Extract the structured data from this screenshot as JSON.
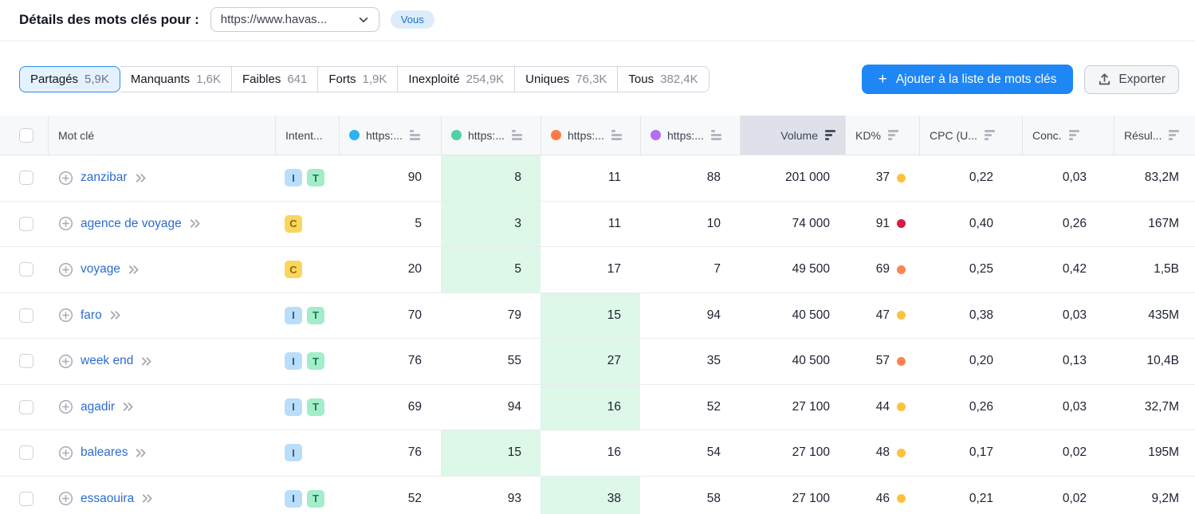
{
  "header": {
    "title": "Détails des mots clés pour :",
    "domain_selected": "https://www.havas...",
    "you_badge": "Vous"
  },
  "tabs": [
    {
      "label": "Partagés",
      "count": "5,9K",
      "selected": true
    },
    {
      "label": "Manquants",
      "count": "1,6K",
      "selected": false
    },
    {
      "label": "Faibles",
      "count": "641",
      "selected": false
    },
    {
      "label": "Forts",
      "count": "1,9K",
      "selected": false
    },
    {
      "label": "Inexploité",
      "count": "254,9K",
      "selected": false
    },
    {
      "label": "Uniques",
      "count": "76,3K",
      "selected": false
    },
    {
      "label": "Tous",
      "count": "382,4K",
      "selected": false
    }
  ],
  "actions": {
    "add_to_list": "Ajouter à la liste de mots clés",
    "export": "Exporter"
  },
  "table": {
    "columns": {
      "keyword": "Mot clé",
      "intent": "Intent...",
      "site1": "https:...",
      "site2": "https:...",
      "site3": "https:...",
      "site4": "https:...",
      "volume": "Volume",
      "kd": "KD%",
      "cpc": "CPC (U...",
      "competition": "Conc.",
      "results": "Résul..."
    },
    "site_colors": [
      "#2bb3f3",
      "#50d0a4",
      "#ff7a45",
      "#b46ef0"
    ],
    "sorted_column": "volume",
    "rows": [
      {
        "keyword": "zanzibar",
        "intents": [
          "I",
          "T"
        ],
        "positions": [
          "90",
          "8",
          "11",
          "88"
        ],
        "best_index": 1,
        "volume": "201 000",
        "kd": "37",
        "kd_level": "yellow",
        "cpc": "0,22",
        "competition": "0,03",
        "results": "83,2M"
      },
      {
        "keyword": "agence de voyage",
        "intents": [
          "C"
        ],
        "positions": [
          "5",
          "3",
          "11",
          "10"
        ],
        "best_index": 1,
        "volume": "74 000",
        "kd": "91",
        "kd_level": "red",
        "cpc": "0,40",
        "competition": "0,26",
        "results": "167M"
      },
      {
        "keyword": "voyage",
        "intents": [
          "C"
        ],
        "positions": [
          "20",
          "5",
          "17",
          "7"
        ],
        "best_index": 1,
        "volume": "49 500",
        "kd": "69",
        "kd_level": "orange",
        "cpc": "0,25",
        "competition": "0,42",
        "results": "1,5B"
      },
      {
        "keyword": "faro",
        "intents": [
          "I",
          "T"
        ],
        "positions": [
          "70",
          "79",
          "15",
          "94"
        ],
        "best_index": 2,
        "volume": "40 500",
        "kd": "47",
        "kd_level": "yellow",
        "cpc": "0,38",
        "competition": "0,03",
        "results": "435M"
      },
      {
        "keyword": "week end",
        "intents": [
          "I",
          "T"
        ],
        "positions": [
          "76",
          "55",
          "27",
          "35"
        ],
        "best_index": 2,
        "volume": "40 500",
        "kd": "57",
        "kd_level": "orange",
        "cpc": "0,20",
        "competition": "0,13",
        "results": "10,4B"
      },
      {
        "keyword": "agadir",
        "intents": [
          "I",
          "T"
        ],
        "positions": [
          "69",
          "94",
          "16",
          "52"
        ],
        "best_index": 2,
        "volume": "27 100",
        "kd": "44",
        "kd_level": "yellow",
        "cpc": "0,26",
        "competition": "0,03",
        "results": "32,7M"
      },
      {
        "keyword": "baleares",
        "intents": [
          "I"
        ],
        "positions": [
          "76",
          "15",
          "16",
          "54"
        ],
        "best_index": 1,
        "volume": "27 100",
        "kd": "48",
        "kd_level": "yellow",
        "cpc": "0,17",
        "competition": "0,02",
        "results": "195M"
      },
      {
        "keyword": "essaouira",
        "intents": [
          "I",
          "T"
        ],
        "positions": [
          "52",
          "93",
          "38",
          "58"
        ],
        "best_index": 2,
        "volume": "27 100",
        "kd": "46",
        "kd_level": "yellow",
        "cpc": "0,21",
        "competition": "0,02",
        "results": "9,2M"
      }
    ]
  },
  "colors": {
    "accent_blue": "#1f86f5",
    "selected_tab_bg": "#e4f1fe",
    "best_position_highlight": "#ddf7e9",
    "kd_levels": {
      "yellow": "#fdc23c",
      "orange": "#ff834e",
      "red": "#dc1843"
    },
    "intent_badges": {
      "I": {
        "bg": "#badefa",
        "fg": "#2d5a88"
      },
      "T": {
        "bg": "#a3edc8",
        "fg": "#187a5b"
      },
      "C": {
        "bg": "#fbd65d",
        "fg": "#8f680c"
      }
    }
  }
}
